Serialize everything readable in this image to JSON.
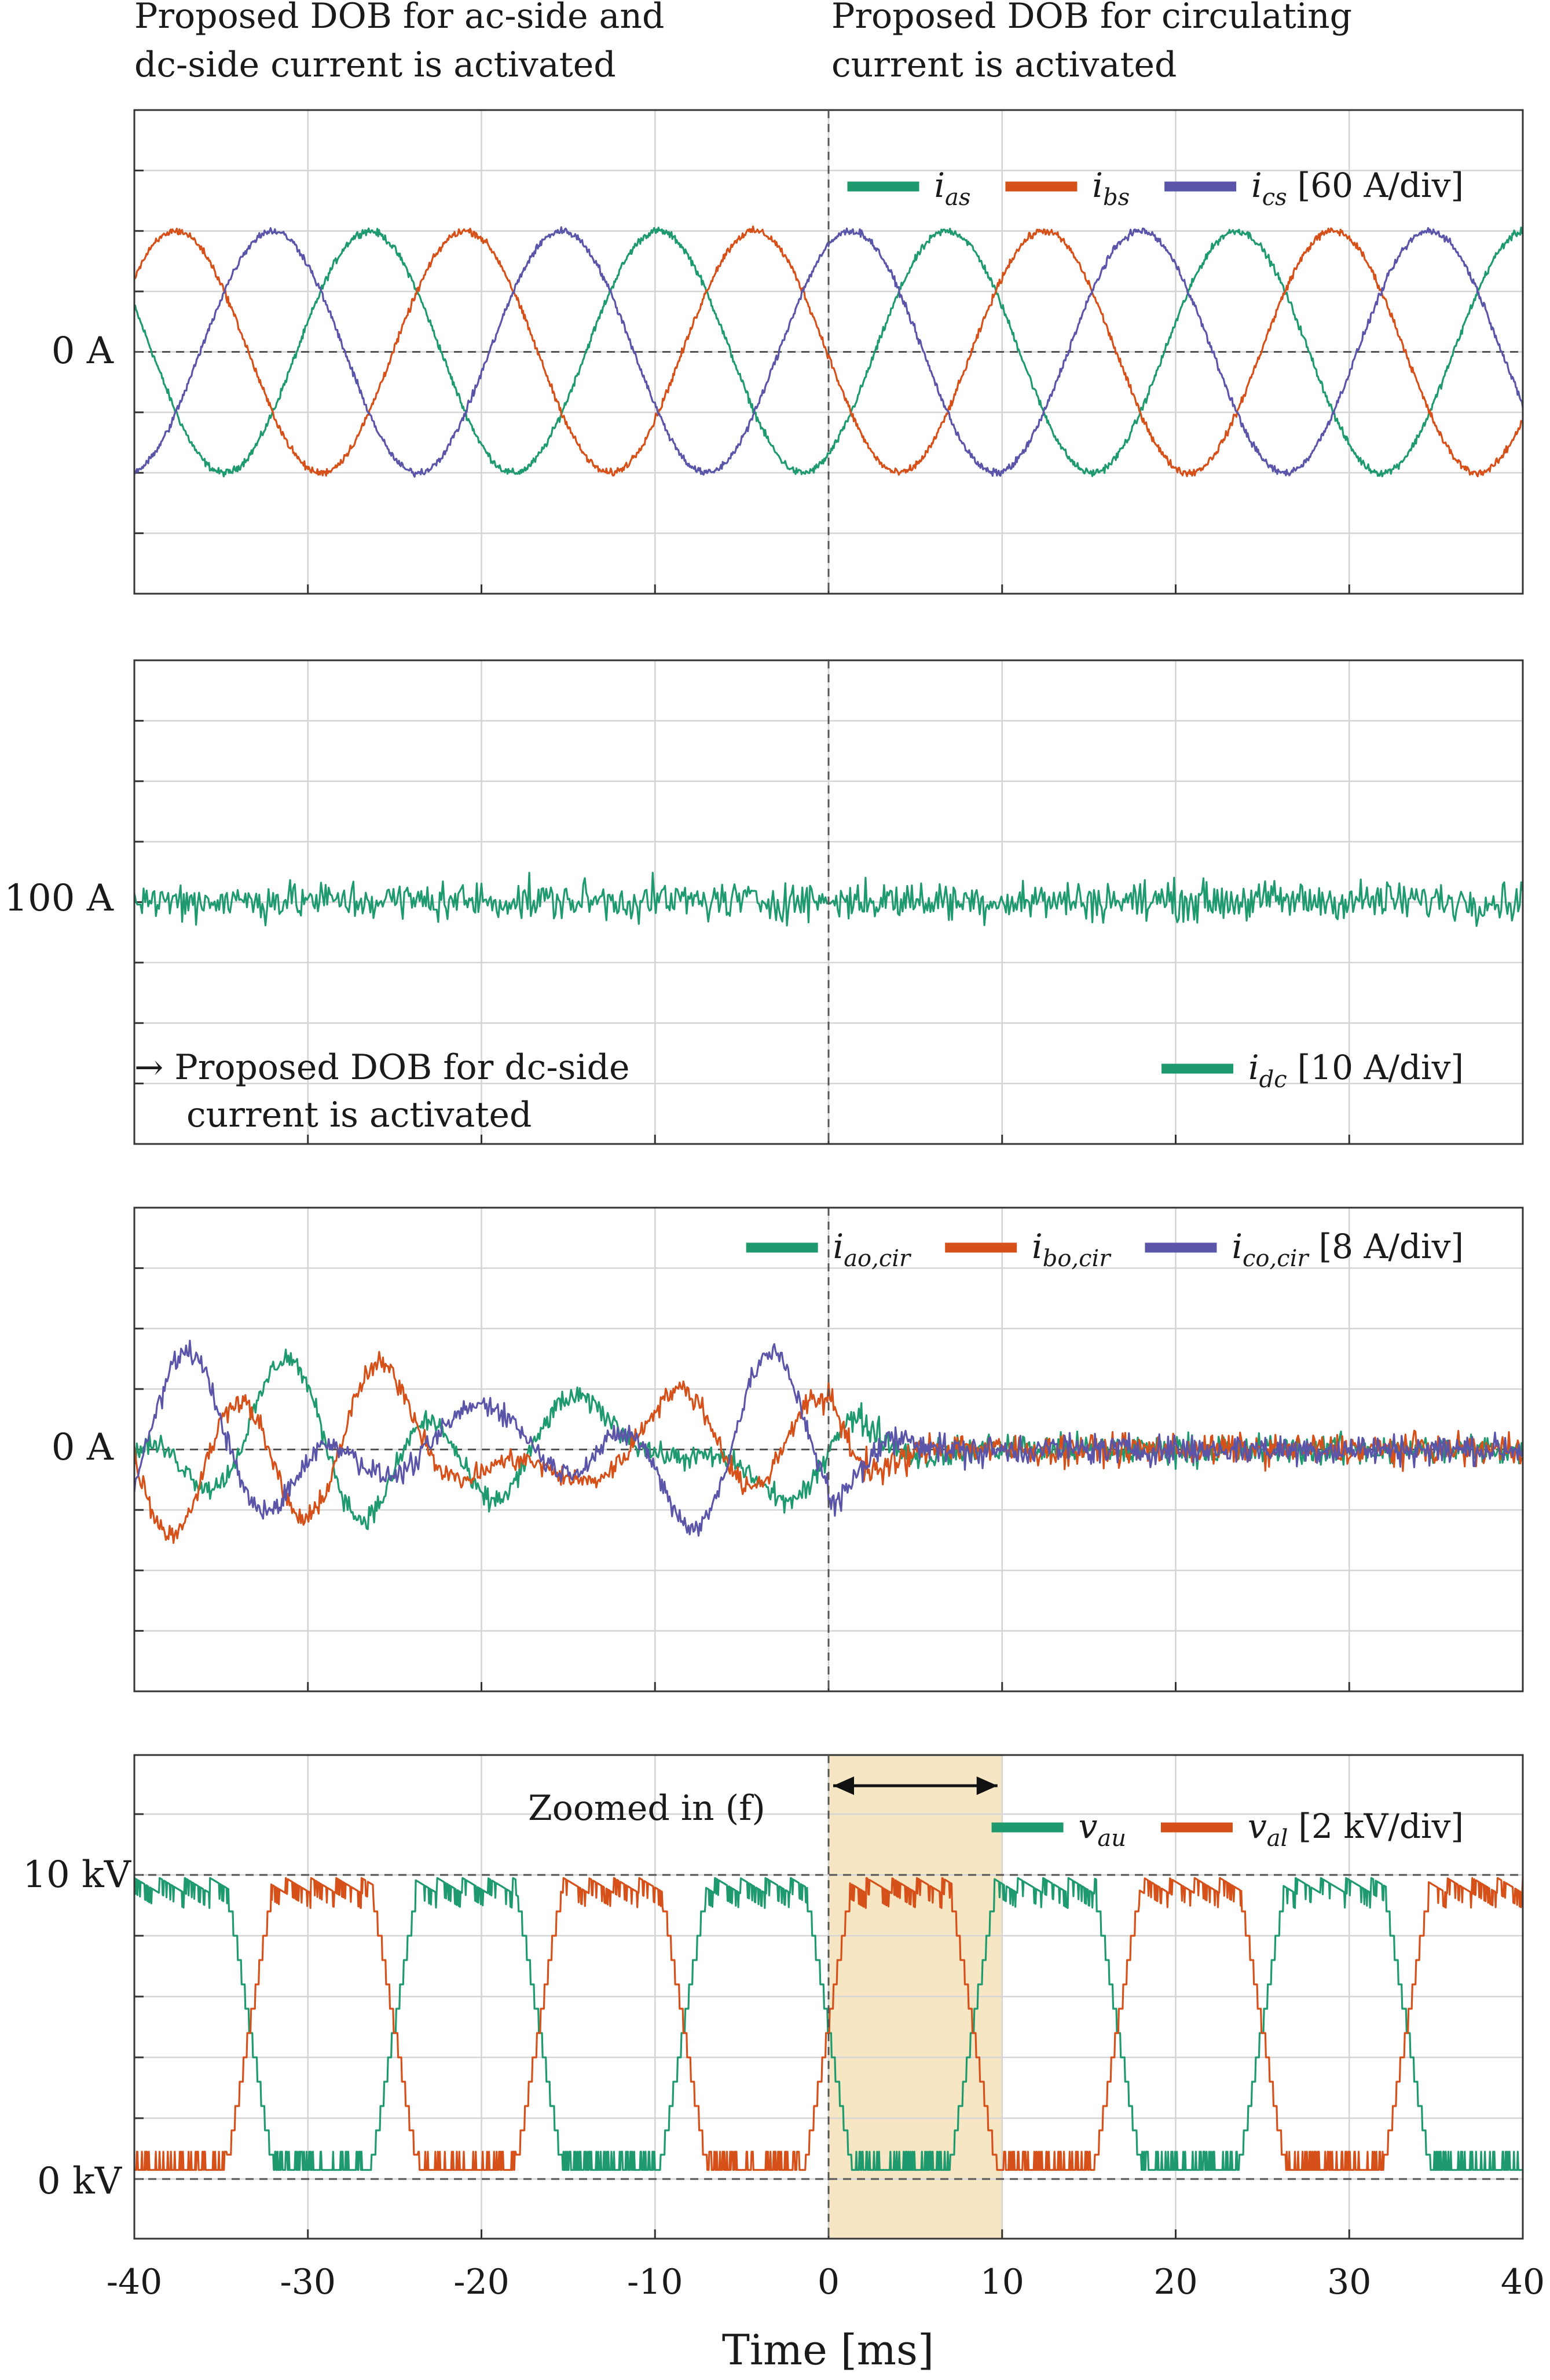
{
  "colors": {
    "green": "#1f9a6e",
    "orange": "#d6501a",
    "purple": "#5a55a8",
    "highlight": "#f6e6c4",
    "frame": "#333333"
  },
  "x_axis": {
    "title": "Time [ms]",
    "ticks": [
      -40,
      -30,
      -20,
      -10,
      0,
      10,
      20,
      30,
      40
    ],
    "tick_labels": [
      "-40",
      "-30",
      "-20",
      "-10",
      "0",
      "10",
      "20",
      "30",
      "40"
    ],
    "range": [
      -40,
      40
    ]
  },
  "annotations": {
    "top_left": [
      "Proposed DOB for ac-side and",
      "dc-side current is activated"
    ],
    "top_right": [
      "Proposed DOB for circulating",
      "current is activated"
    ],
    "dc_note": [
      "→ Proposed DOB for dc-side",
      "current is activated"
    ],
    "zoom_label": "Zoomed in (f)"
  },
  "chart_data": [
    {
      "type": "line",
      "panel": "ac-side currents",
      "y_reference_label": "0 A",
      "y_reference_value": 0,
      "y_divisions": 8,
      "scale": "60 A/div",
      "ylim": [
        -4,
        4
      ],
      "legend": [
        {
          "symbol": "i",
          "sub": "as",
          "color": "green"
        },
        {
          "symbol": "i",
          "sub": "bs",
          "color": "orange"
        },
        {
          "symbol": "i",
          "sub": "cs",
          "color": "purple"
        }
      ],
      "legend_suffix": "[60 A/div]",
      "legend_position": "top-right",
      "series": [
        {
          "name": "i_as",
          "color": "green",
          "waveform": "sine",
          "amplitude_div": 2,
          "frequency_hz": 60,
          "phase_deg": -58,
          "noise_div": 0.06
        },
        {
          "name": "i_bs",
          "color": "orange",
          "waveform": "sine",
          "amplitude_div": 2,
          "frequency_hz": 60,
          "phase_deg": 182,
          "noise_div": 0.06
        },
        {
          "name": "i_cs",
          "color": "purple",
          "waveform": "sine",
          "amplitude_div": 2,
          "frequency_hz": 60,
          "phase_deg": 62,
          "noise_div": 0.06
        }
      ]
    },
    {
      "type": "line",
      "panel": "dc-side current",
      "y_reference_label": "100 A",
      "y_reference_value": 100,
      "y_divisions": 8,
      "scale": "10 A/div",
      "ylim": [
        -4,
        4
      ],
      "legend": [
        {
          "symbol": "i",
          "sub": "dc",
          "color": "green"
        }
      ],
      "legend_suffix": "[10 A/div]",
      "legend_position": "bottom-right",
      "series": [
        {
          "name": "i_dc",
          "color": "green",
          "waveform": "noise",
          "mean_div": 0,
          "noise_div": 0.32
        }
      ]
    },
    {
      "type": "line",
      "panel": "circulating currents",
      "y_reference_label": "0 A",
      "y_reference_value": 0,
      "y_divisions": 8,
      "scale": "8 A/div",
      "ylim": [
        -4,
        4
      ],
      "legend": [
        {
          "symbol": "i",
          "sub": "ao,cir",
          "color": "green"
        },
        {
          "symbol": "i",
          "sub": "bo,cir",
          "color": "orange"
        },
        {
          "symbol": "i",
          "sub": "co,cir",
          "color": "purple"
        }
      ],
      "legend_suffix": "[8 A/div]",
      "legend_position": "top-right",
      "series": [
        {
          "name": "i_ao,cir",
          "color": "green",
          "waveform": "circulating",
          "amplitude_before_div": 1.1,
          "amplitude_after_div": 0.25,
          "phase_deg": 0
        },
        {
          "name": "i_bo,cir",
          "color": "orange",
          "waveform": "circulating",
          "amplitude_before_div": 1.3,
          "amplitude_after_div": 0.25,
          "phase_deg": 120
        },
        {
          "name": "i_co,cir",
          "color": "purple",
          "waveform": "circulating",
          "amplitude_before_div": 1.2,
          "amplitude_after_div": 0.25,
          "phase_deg": 240
        }
      ]
    },
    {
      "type": "line",
      "panel": "arm voltages",
      "y_reference_labels": [
        "10 kV",
        "0 kV"
      ],
      "y_reference_values": [
        10,
        0
      ],
      "scale": "2 kV/div",
      "ylim": [
        -1,
        13
      ],
      "legend": [
        {
          "symbol": "v",
          "sub": "au",
          "color": "green"
        },
        {
          "symbol": "v",
          "sub": "al",
          "color": "orange"
        }
      ],
      "legend_suffix": "[2 kV/div]",
      "legend_position": "top-right",
      "highlight_range_ms": [
        0,
        10
      ],
      "series": [
        {
          "name": "v_au",
          "color": "green",
          "waveform": "staircase",
          "high_kv": 10,
          "low_kv": 0,
          "frequency_hz": 60,
          "phase_deg": 180
        },
        {
          "name": "v_al",
          "color": "orange",
          "waveform": "staircase",
          "high_kv": 10,
          "low_kv": 0,
          "frequency_hz": 60,
          "phase_deg": 0
        }
      ]
    }
  ]
}
